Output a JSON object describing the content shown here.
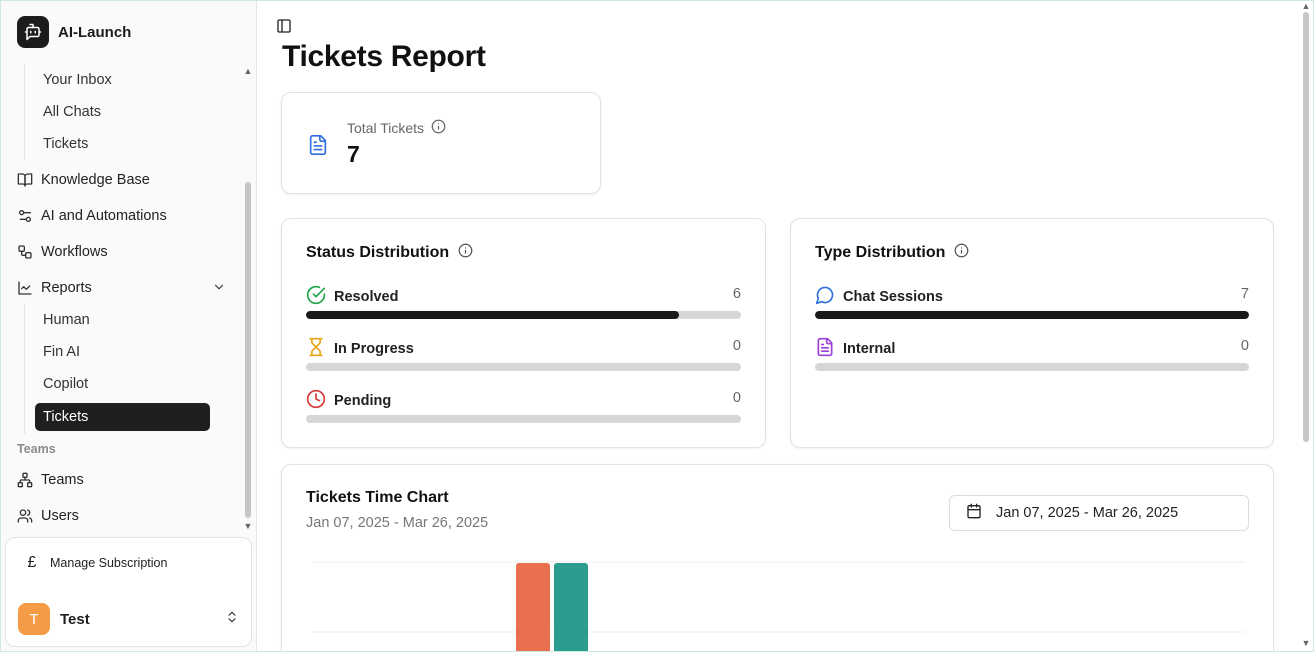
{
  "app": {
    "name": "AI-Launch"
  },
  "sidebar": {
    "inbox_items": [
      {
        "label": "Your Inbox"
      },
      {
        "label": "All Chats"
      },
      {
        "label": "Tickets"
      }
    ],
    "main_items": [
      {
        "label": "Knowledge Base",
        "icon": "book-icon"
      },
      {
        "label": "AI and Automations",
        "icon": "sliders-icon"
      },
      {
        "label": "Workflows",
        "icon": "workflow-icon"
      },
      {
        "label": "Reports",
        "icon": "chart-line-icon"
      }
    ],
    "report_items": [
      {
        "label": "Human"
      },
      {
        "label": "Fin AI"
      },
      {
        "label": "Copilot"
      },
      {
        "label": "Tickets",
        "active": true
      }
    ],
    "teams_group_label": "Teams",
    "teams_items": [
      {
        "label": "Teams",
        "icon": "network-icon"
      },
      {
        "label": "Users",
        "icon": "users-icon"
      }
    ],
    "manage_subscription": "Manage Subscription",
    "user": {
      "initial": "T",
      "name": "Test"
    }
  },
  "main": {
    "title": "Tickets Report",
    "total": {
      "label": "Total Tickets",
      "value": "7"
    },
    "status_distribution": {
      "title": "Status Distribution",
      "rows": [
        {
          "label": "Resolved",
          "count": "6",
          "fraction": 0.857,
          "icon": "check-circle-icon",
          "color": "#22a447"
        },
        {
          "label": "In Progress",
          "count": "0",
          "fraction": 0,
          "icon": "hourglass-icon",
          "color": "#e6a417"
        },
        {
          "label": "Pending",
          "count": "0",
          "fraction": 0,
          "icon": "clock-icon",
          "color": "#d93a3a"
        }
      ]
    },
    "type_distribution": {
      "title": "Type Distribution",
      "rows": [
        {
          "label": "Chat Sessions",
          "count": "7",
          "fraction": 1,
          "icon": "message-circle-icon",
          "color": "#2f6fe0"
        },
        {
          "label": "Internal",
          "count": "0",
          "fraction": 0,
          "icon": "file-text-icon",
          "color": "#9b40d6"
        }
      ]
    },
    "time_chart": {
      "title": "Tickets Time Chart",
      "subtitle": "Jan 07, 2025 - Mar 26, 2025",
      "date_range": "Jan 07, 2025 - Mar 26, 2025"
    }
  },
  "colors": {
    "bar_orange": "#e8704f",
    "bar_teal": "#2a9d8f",
    "accent_dark": "#1f1f1f"
  }
}
